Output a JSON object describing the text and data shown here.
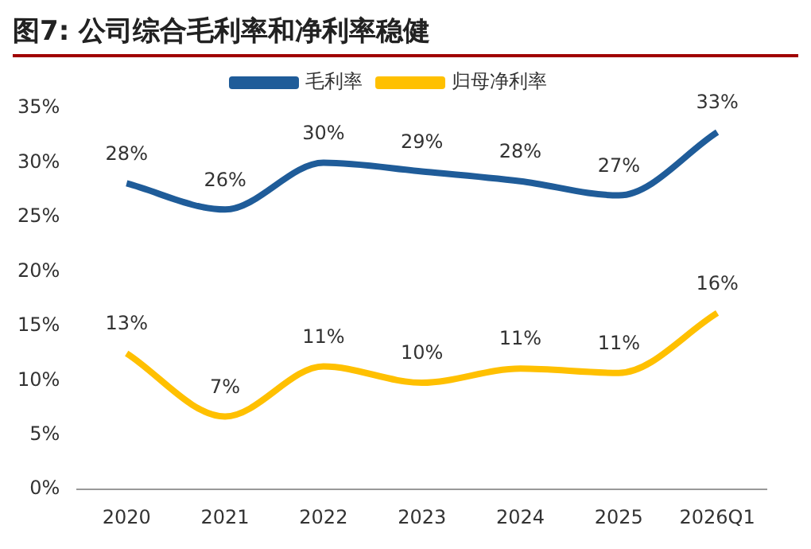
{
  "chart_data": {
    "type": "line",
    "title": "图7: 公司综合毛利率和净利率稳健",
    "categories": [
      "2020",
      "2021",
      "2022",
      "2023",
      "2024",
      "2025",
      "2026Q1"
    ],
    "series": [
      {
        "name": "毛利率",
        "color": "#1f5c99",
        "values": [
          28.1,
          25.7,
          30,
          29.2,
          28.3,
          27,
          32.8
        ],
        "value_labels": [
          "28%",
          "26%",
          "30%",
          "29%",
          "28%",
          "27%",
          "33%"
        ]
      },
      {
        "name": "归母净利率",
        "color": "#ffc000",
        "values": [
          12.5,
          6.7,
          11.3,
          9.8,
          11.1,
          10.7,
          16.2
        ],
        "value_labels": [
          "13%",
          "7%",
          "11%",
          "10%",
          "11%",
          "11%",
          "16%"
        ]
      }
    ],
    "ylim": [
      0,
      35
    ],
    "yticks": [
      {
        "value": 0,
        "label": "0%"
      },
      {
        "value": 5,
        "label": "5%"
      },
      {
        "value": 10,
        "label": "10%"
      },
      {
        "value": 15,
        "label": "15%"
      },
      {
        "value": 20,
        "label": "20%"
      },
      {
        "value": 25,
        "label": "25%"
      },
      {
        "value": 30,
        "label": "30%"
      },
      {
        "value": 35,
        "label": "35%"
      }
    ],
    "grid": false,
    "legend": "top",
    "marker": "none",
    "line_style": "solid"
  }
}
